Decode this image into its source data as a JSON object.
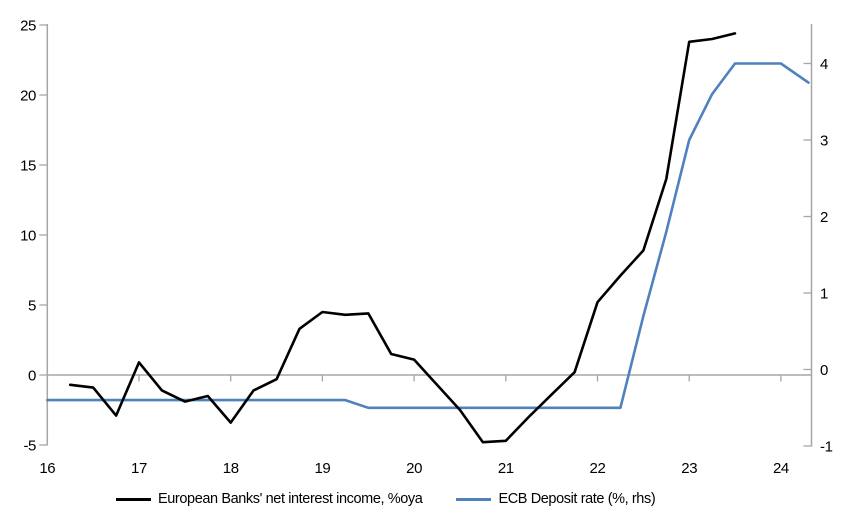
{
  "chart_data": {
    "type": "line",
    "title": "",
    "xlabel": "",
    "ylabel_left": "",
    "ylabel_right": "",
    "grid": "horizontal-zero-line-only",
    "legend_position": "bottom",
    "x_axis": {
      "ticks": [
        "16",
        "17",
        "18",
        "19",
        "20",
        "21",
        "22",
        "23",
        "24"
      ],
      "range": [
        16,
        24.35
      ]
    },
    "left_axis": {
      "ticks": [
        "-5",
        "0",
        "5",
        "10",
        "15",
        "20",
        "25"
      ],
      "range": [
        -5,
        25
      ]
    },
    "right_axis": {
      "ticks": [
        "-1",
        "0",
        "1",
        "2",
        "3",
        "4"
      ],
      "range": [
        -1,
        4.5
      ]
    },
    "series": [
      {
        "name": "European Banks' net interest income, %oya",
        "axis": "left",
        "color": "#000000",
        "x": [
          16.25,
          16.5,
          16.75,
          17.0,
          17.25,
          17.5,
          17.75,
          18.0,
          18.25,
          18.5,
          18.75,
          19.0,
          19.25,
          19.5,
          19.75,
          20.0,
          20.25,
          20.5,
          20.75,
          21.0,
          21.25,
          21.5,
          21.75,
          22.0,
          22.25,
          22.5,
          22.75,
          23.0,
          23.25,
          23.5
        ],
        "values": [
          -0.7,
          -0.9,
          -2.9,
          0.9,
          -1.1,
          -1.9,
          -1.5,
          -3.4,
          -1.1,
          -0.3,
          3.3,
          4.5,
          4.3,
          4.4,
          1.5,
          1.1,
          -0.7,
          -2.5,
          -4.8,
          -4.7,
          -3.0,
          -1.4,
          0.2,
          5.2,
          7.1,
          8.9,
          14.0,
          23.8,
          24.0,
          24.4
        ]
      },
      {
        "name": "ECB Deposit rate (%, rhs)",
        "axis": "right",
        "color": "#4F81BD",
        "x": [
          16.0,
          16.25,
          16.5,
          16.75,
          17.0,
          17.25,
          17.5,
          17.75,
          18.0,
          18.25,
          18.5,
          18.75,
          19.0,
          19.25,
          19.5,
          19.75,
          20.0,
          20.25,
          20.5,
          20.75,
          21.0,
          21.25,
          21.5,
          21.75,
          22.0,
          22.25,
          22.5,
          22.75,
          23.0,
          23.25,
          23.5,
          23.75,
          24.0,
          24.3
        ],
        "values": [
          -0.4,
          -0.4,
          -0.4,
          -0.4,
          -0.4,
          -0.4,
          -0.4,
          -0.4,
          -0.4,
          -0.4,
          -0.4,
          -0.4,
          -0.4,
          -0.4,
          -0.5,
          -0.5,
          -0.5,
          -0.5,
          -0.5,
          -0.5,
          -0.5,
          -0.5,
          -0.5,
          -0.5,
          -0.5,
          -0.5,
          0.7,
          1.8,
          3.0,
          3.6,
          4.0,
          4.0,
          4.0,
          3.75
        ]
      }
    ]
  },
  "legend": {
    "items": [
      {
        "label": "European Banks' net interest income, %oya",
        "color": "#000000"
      },
      {
        "label": "ECB Deposit rate (%, rhs)",
        "color": "#4F81BD"
      }
    ]
  },
  "colors": {
    "axis_gray": "#A6A6A6",
    "series_black": "#000000",
    "series_blue": "#4F81BD",
    "text": "#000000",
    "background": "#FFFFFF"
  }
}
